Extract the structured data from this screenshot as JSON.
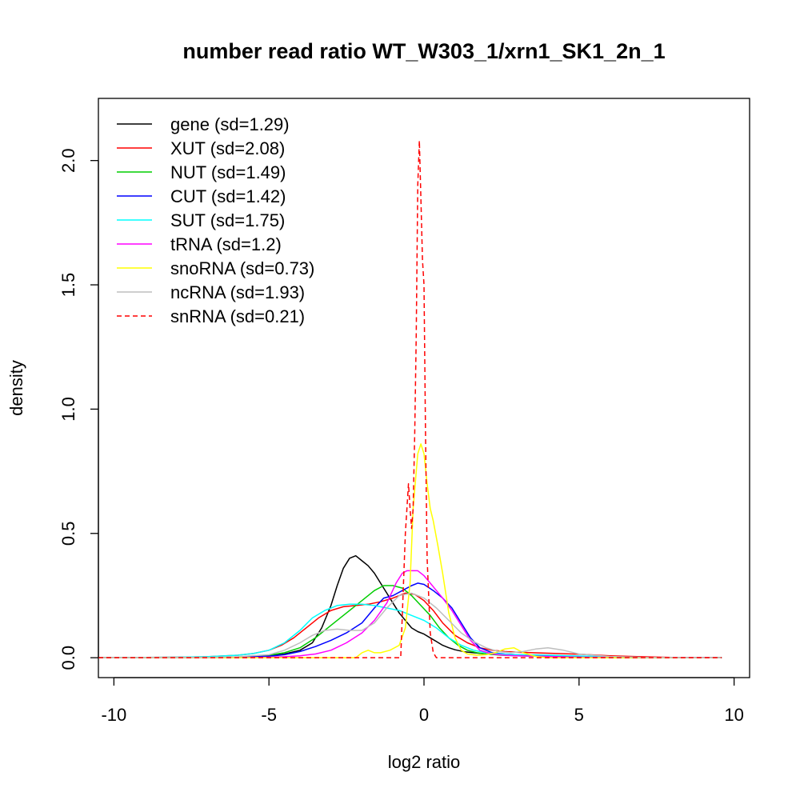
{
  "chart_data": {
    "type": "line",
    "title": "number read ratio WT_W303_1/xrn1_SK1_2n_1",
    "xlabel": "log2 ratio",
    "ylabel": "density",
    "xlim": [
      -10.5,
      10.5
    ],
    "ylim": [
      -0.08,
      2.25
    ],
    "xticks": [
      -10,
      -5,
      0,
      5,
      10
    ],
    "xtick_labels": [
      "-10",
      "-5",
      "0",
      "5",
      "10"
    ],
    "yticks": [
      0.0,
      0.5,
      1.0,
      1.5,
      2.0
    ],
    "ytick_labels": [
      "0.0",
      "0.5",
      "1.0",
      "1.5",
      "2.0"
    ],
    "grid": false,
    "legend_position": "top-left",
    "series": [
      {
        "name": "gene (sd=1.29)",
        "color": "#000000",
        "dashed": false,
        "x": [
          -10.5,
          -8,
          -6,
          -5,
          -4.5,
          -4,
          -3.6,
          -3.3,
          -3.0,
          -2.8,
          -2.6,
          -2.4,
          -2.2,
          -2.0,
          -1.8,
          -1.6,
          -1.4,
          -1.2,
          -1.0,
          -0.8,
          -0.6,
          -0.4,
          -0.2,
          0.0,
          0.2,
          0.4,
          0.6,
          0.8,
          1.0,
          1.3,
          1.6,
          2.0,
          2.5,
          3.0,
          4.0,
          5.0,
          6.0,
          8.0,
          9.6
        ],
        "y": [
          0.0,
          0.0,
          0.003,
          0.008,
          0.015,
          0.03,
          0.06,
          0.12,
          0.21,
          0.29,
          0.36,
          0.4,
          0.41,
          0.39,
          0.37,
          0.34,
          0.3,
          0.26,
          0.22,
          0.18,
          0.15,
          0.12,
          0.105,
          0.095,
          0.08,
          0.065,
          0.05,
          0.04,
          0.032,
          0.024,
          0.02,
          0.015,
          0.012,
          0.01,
          0.007,
          0.004,
          0.002,
          0.0,
          0.0
        ]
      },
      {
        "name": "XUT (sd=2.08)",
        "color": "#ff0000",
        "dashed": false,
        "x": [
          -10.5,
          -8,
          -7,
          -6,
          -5.5,
          -5,
          -4.6,
          -4.2,
          -3.8,
          -3.4,
          -3.0,
          -2.6,
          -2.2,
          -1.8,
          -1.4,
          -1.0,
          -0.6,
          -0.3,
          0.0,
          0.3,
          0.6,
          1.0,
          1.4,
          1.8,
          2.2,
          2.6,
          3.0,
          3.5,
          4.0,
          5.0,
          6.0,
          7.0,
          8.0,
          9.6
        ],
        "y": [
          0.0,
          0.002,
          0.004,
          0.01,
          0.017,
          0.03,
          0.05,
          0.08,
          0.12,
          0.16,
          0.19,
          0.205,
          0.21,
          0.215,
          0.225,
          0.24,
          0.26,
          0.255,
          0.23,
          0.19,
          0.14,
          0.09,
          0.06,
          0.04,
          0.03,
          0.025,
          0.022,
          0.02,
          0.018,
          0.014,
          0.008,
          0.004,
          0.001,
          0.0
        ]
      },
      {
        "name": "NUT (sd=1.49)",
        "color": "#00cd00",
        "dashed": false,
        "x": [
          -10.5,
          -8,
          -6,
          -5,
          -4.5,
          -4,
          -3.5,
          -3.0,
          -2.5,
          -2.0,
          -1.6,
          -1.3,
          -1.0,
          -0.7,
          -0.4,
          -0.1,
          0.2,
          0.5,
          0.8,
          1.1,
          1.4,
          1.7,
          2.0,
          2.5,
          3.0,
          4.0,
          5.0,
          6.0,
          9.6
        ],
        "y": [
          0.0,
          0.0,
          0.003,
          0.01,
          0.02,
          0.04,
          0.08,
          0.13,
          0.18,
          0.23,
          0.27,
          0.29,
          0.29,
          0.28,
          0.25,
          0.21,
          0.17,
          0.12,
          0.08,
          0.05,
          0.03,
          0.02,
          0.015,
          0.01,
          0.008,
          0.005,
          0.002,
          0.0,
          0.0
        ]
      },
      {
        "name": "CUT (sd=1.42)",
        "color": "#0000ff",
        "dashed": false,
        "x": [
          -10.5,
          -8,
          -6,
          -5,
          -4.5,
          -4,
          -3.5,
          -3.0,
          -2.5,
          -2.0,
          -1.6,
          -1.3,
          -1.0,
          -0.7,
          -0.4,
          -0.2,
          0.0,
          0.3,
          0.6,
          0.9,
          1.2,
          1.5,
          1.8,
          2.2,
          2.6,
          3.0,
          4.0,
          5.0,
          6.0,
          9.6
        ],
        "y": [
          0.0,
          0.0,
          0.002,
          0.006,
          0.012,
          0.025,
          0.045,
          0.07,
          0.1,
          0.14,
          0.2,
          0.24,
          0.25,
          0.27,
          0.29,
          0.3,
          0.295,
          0.27,
          0.24,
          0.2,
          0.14,
          0.08,
          0.04,
          0.02,
          0.015,
          0.012,
          0.008,
          0.004,
          0.001,
          0.0
        ]
      },
      {
        "name": "SUT (sd=1.75)",
        "color": "#00ffff",
        "dashed": false,
        "x": [
          -10.5,
          -8,
          -7,
          -6,
          -5.5,
          -5,
          -4.5,
          -4.0,
          -3.6,
          -3.2,
          -2.8,
          -2.4,
          -2.0,
          -1.6,
          -1.2,
          -0.8,
          -0.4,
          0.0,
          0.4,
          0.8,
          1.2,
          1.6,
          2.0,
          2.5,
          3.0,
          4.0,
          5.0,
          6.0,
          7.0,
          9.6
        ],
        "y": [
          0.0,
          0.002,
          0.004,
          0.01,
          0.017,
          0.03,
          0.06,
          0.11,
          0.16,
          0.19,
          0.21,
          0.215,
          0.215,
          0.21,
          0.2,
          0.19,
          0.17,
          0.15,
          0.12,
          0.08,
          0.05,
          0.03,
          0.02,
          0.015,
          0.012,
          0.01,
          0.007,
          0.004,
          0.001,
          0.0
        ]
      },
      {
        "name": "tRNA (sd=1.2)",
        "color": "#ff00ff",
        "dashed": false,
        "x": [
          -10.5,
          -6,
          -5,
          -4.5,
          -4,
          -3.5,
          -3.0,
          -2.5,
          -2.0,
          -1.6,
          -1.2,
          -0.9,
          -0.7,
          -0.55,
          -0.4,
          -0.2,
          0.0,
          0.2,
          0.4,
          0.6,
          0.9,
          1.2,
          1.5,
          1.8,
          2.2,
          2.6,
          3.0,
          4.0,
          5.0,
          9.6
        ],
        "y": [
          0.0,
          0.0,
          0.002,
          0.004,
          0.008,
          0.015,
          0.03,
          0.06,
          0.1,
          0.15,
          0.22,
          0.3,
          0.34,
          0.35,
          0.35,
          0.35,
          0.33,
          0.3,
          0.27,
          0.24,
          0.19,
          0.13,
          0.07,
          0.03,
          0.015,
          0.01,
          0.008,
          0.005,
          0.002,
          0.0
        ]
      },
      {
        "name": "snoRNA (sd=0.73)",
        "color": "#ffff00",
        "dashed": false,
        "x": [
          -10.5,
          -3,
          -2.2,
          -2.0,
          -1.8,
          -1.6,
          -1.4,
          -1.1,
          -0.8,
          -0.6,
          -0.45,
          -0.35,
          -0.2,
          -0.1,
          0.0,
          0.1,
          0.2,
          0.3,
          0.45,
          0.6,
          0.8,
          1.0,
          1.2,
          1.4,
          1.7,
          2.0,
          2.3,
          2.6,
          2.9,
          3.2,
          3.6,
          4.0,
          9.6
        ],
        "y": [
          0.0,
          0.0,
          0.0,
          0.02,
          0.03,
          0.02,
          0.02,
          0.03,
          0.05,
          0.12,
          0.3,
          0.6,
          0.82,
          0.86,
          0.82,
          0.7,
          0.6,
          0.55,
          0.45,
          0.34,
          0.18,
          0.08,
          0.03,
          0.015,
          0.01,
          0.012,
          0.02,
          0.035,
          0.04,
          0.02,
          0.005,
          0.0,
          0.0
        ]
      },
      {
        "name": "ncRNA (sd=1.93)",
        "color": "#bebebe",
        "dashed": false,
        "x": [
          -10.5,
          -7,
          -6,
          -5,
          -4.5,
          -4.0,
          -3.6,
          -3.2,
          -2.8,
          -2.4,
          -2.0,
          -1.6,
          -1.2,
          -0.8,
          -0.4,
          0.0,
          0.4,
          0.8,
          1.2,
          1.6,
          2.0,
          2.4,
          2.8,
          3.2,
          3.6,
          4.0,
          4.5,
          5.0,
          6.0,
          7.0,
          9.6
        ],
        "y": [
          0.0,
          0.001,
          0.004,
          0.012,
          0.03,
          0.06,
          0.09,
          0.11,
          0.115,
          0.11,
          0.11,
          0.14,
          0.2,
          0.25,
          0.26,
          0.24,
          0.2,
          0.15,
          0.1,
          0.065,
          0.04,
          0.025,
          0.02,
          0.025,
          0.035,
          0.04,
          0.03,
          0.015,
          0.005,
          0.001,
          0.0
        ]
      },
      {
        "name": "snRNA (sd=0.21)",
        "color": "#ff0000",
        "dashed": true,
        "x": [
          -10.5,
          -1.0,
          -0.75,
          -0.6,
          -0.5,
          -0.45,
          -0.4,
          -0.35,
          -0.3,
          -0.25,
          -0.2,
          -0.15,
          -0.1,
          -0.05,
          0.0,
          0.05,
          0.1,
          0.2,
          0.3,
          0.4,
          9.6
        ],
        "y": [
          0.0,
          0.0,
          0.0,
          0.5,
          0.7,
          0.6,
          0.52,
          0.6,
          0.9,
          1.3,
          1.9,
          2.08,
          1.85,
          1.6,
          1.5,
          0.9,
          0.4,
          0.1,
          0.02,
          0.0,
          0.0
        ]
      }
    ]
  }
}
